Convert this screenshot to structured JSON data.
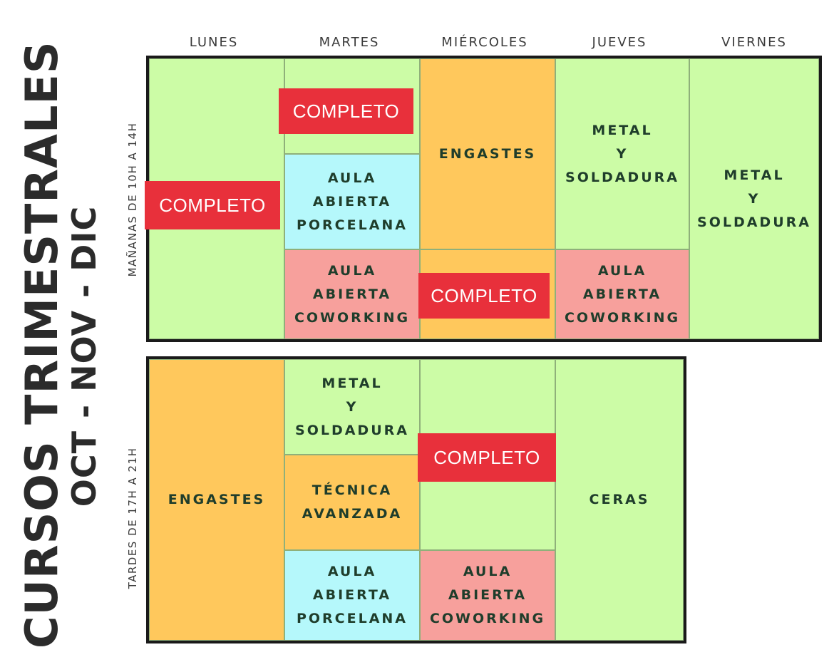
{
  "title": {
    "line1": "CURSOS TRIMESTRALES",
    "line2": "OCT - NOV - DIC"
  },
  "days": [
    "LUNES",
    "MARTES",
    "MIÉRCOLES",
    "JUEVES",
    "VIERNES"
  ],
  "morning": {
    "label": "MAÑANAS DE 10H A 14H",
    "cells": [
      {
        "text": "",
        "color": "green"
      },
      {
        "text": "",
        "color": "green"
      },
      {
        "text": "AULA\nABIERTA\nPORCELANA",
        "color": "blue"
      },
      {
        "text": "AULA\nABIERTA\nCOWORKING",
        "color": "red"
      },
      {
        "text": "ENGASTES",
        "color": "orange"
      },
      {
        "text": "",
        "color": "orange"
      },
      {
        "text": "METAL\nY\nSOLDADURA",
        "color": "green"
      },
      {
        "text": "AULA\nABIERTA\nCOWORKING",
        "color": "red"
      },
      {
        "text": "METAL\nY\nSOLDADURA",
        "color": "green"
      }
    ]
  },
  "afternoon": {
    "label": "TARDES DE 17H A 21H",
    "cells": [
      {
        "text": "ENGASTES",
        "color": "orange"
      },
      {
        "text": "METAL\nY\nSOLDADURA",
        "color": "green"
      },
      {
        "text": "TÉCNICA\nAVANZADA",
        "color": "orange"
      },
      {
        "text": "AULA\nABIERTA\nPORCELANA",
        "color": "blue"
      },
      {
        "text": "",
        "color": "green"
      },
      {
        "text": "AULA\nABIERTA\nCOWORKING",
        "color": "red"
      },
      {
        "text": "CERAS",
        "color": "green"
      }
    ]
  },
  "badges": [
    "COMPLETO",
    "COMPLETO",
    "COMPLETO",
    "COMPLETO"
  ],
  "colors": {
    "green": "#ccfca6",
    "orange": "#ffc85c",
    "blue": "#b5f8fb",
    "red": "#f7a09c",
    "badge": "#e8303b"
  }
}
